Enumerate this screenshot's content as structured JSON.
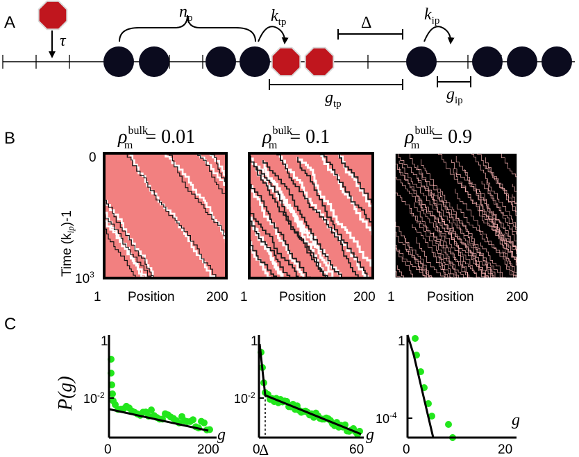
{
  "panels": {
    "A": {
      "label": "A"
    },
    "B": {
      "label": "B"
    },
    "C": {
      "label": "C"
    }
  },
  "schematic": {
    "tau": "τ",
    "np": {
      "main": "n",
      "sub": "p"
    },
    "ktp": {
      "main": "k",
      "sub": "tp"
    },
    "kip": {
      "main": "k",
      "sub": "ip"
    },
    "delta": "Δ",
    "gtp": {
      "main": "g",
      "sub": "tp"
    },
    "gip": {
      "main": "g",
      "sub": "ip"
    },
    "colors": {
      "motor": "#0b0b1e",
      "blocker": "#c0161e",
      "blocker_edge": "#d8d8d8"
    }
  },
  "kymographs": {
    "y_label": "Time (k",
    "y_label_sub": "ip",
    "y_label_sup": ")-1",
    "y_top": "0",
    "y_bottom": "10",
    "y_bottom_exp": "3",
    "x_left": "1",
    "x_center": "Position",
    "x_right": "200",
    "panels": [
      {
        "rho": "ρ",
        "sup": "bulk",
        "sub": "m",
        "value": "= 0.01",
        "bg": "#f28080"
      },
      {
        "rho": "ρ",
        "sup": "bulk",
        "sub": "m",
        "value": "= 0.1",
        "bg": "#f28080"
      },
      {
        "rho": "ρ",
        "sup": "bulk",
        "sub": "m",
        "value": "= 0.9",
        "bg": "#000000"
      }
    ]
  },
  "distributions": {
    "y_label": "P(g)",
    "colors": {
      "points": "#22e61c",
      "fit": "#000000"
    },
    "plots": [
      {
        "type": "scatter",
        "x_axis_label": "g",
        "x_ticks": [
          "0",
          "200"
        ],
        "y_ticks": [
          "1",
          "10",
          "-2"
        ],
        "xlim": [
          0,
          200
        ],
        "ylim": [
          -3,
          0
        ]
      },
      {
        "type": "scatter",
        "x_axis_label": "g",
        "x_ticks": [
          "0",
          "Δ",
          "60"
        ],
        "y_ticks": [
          "1",
          "10",
          "-2"
        ],
        "xlim": [
          0,
          60
        ],
        "ylim": [
          -3,
          0
        ]
      },
      {
        "type": "scatter",
        "x_axis_label": "g",
        "x_ticks": [
          "0",
          "20"
        ],
        "y_ticks": [
          "1",
          "10",
          "-4"
        ],
        "xlim": [
          0,
          20
        ],
        "ylim": [
          -5,
          0
        ]
      }
    ]
  }
}
